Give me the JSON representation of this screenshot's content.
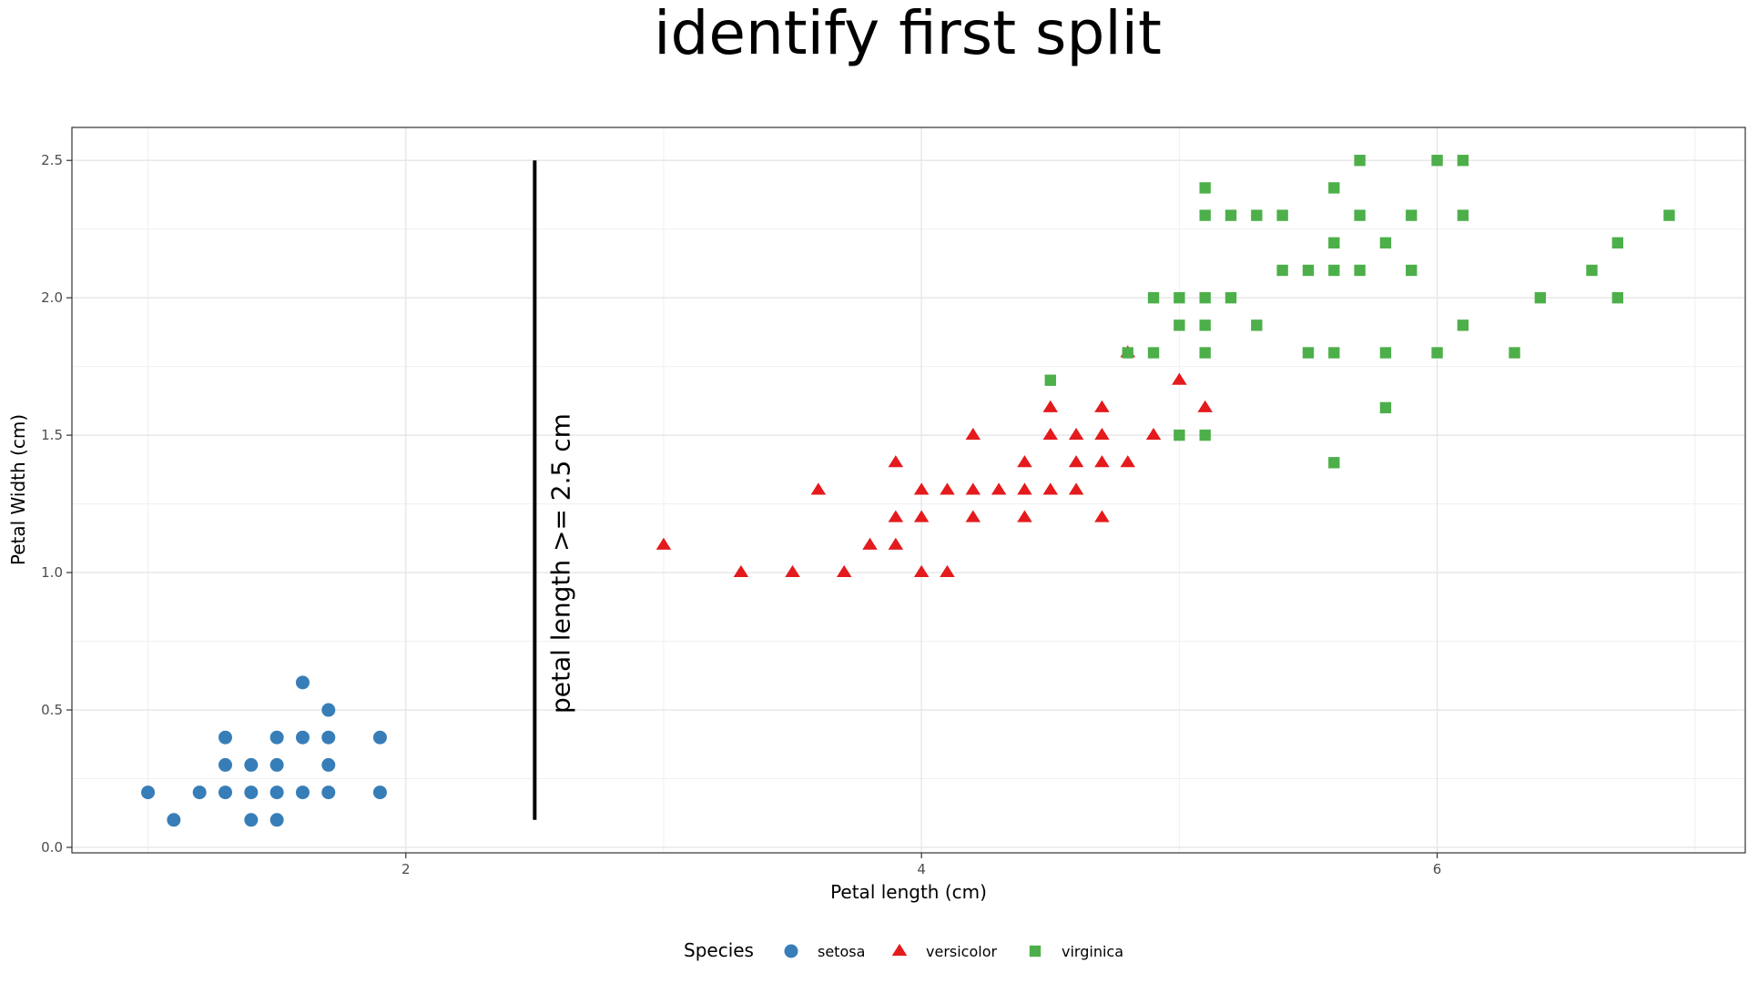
{
  "chart_data": {
    "type": "scatter",
    "title": "identify first split",
    "xlabel": "Petal length (cm)",
    "ylabel": "Petal Width (cm)",
    "xlim": [
      0.705,
      7.195
    ],
    "ylim": [
      -0.02,
      2.62
    ],
    "x_ticks": [
      2,
      4,
      6
    ],
    "x_tick_labels": [
      "2",
      "4",
      "6"
    ],
    "y_ticks": [
      0.0,
      0.5,
      1.0,
      1.5,
      2.0,
      2.5
    ],
    "y_tick_labels": [
      "0.0",
      "0.5",
      "1.0",
      "1.5",
      "2.0",
      "2.5"
    ],
    "grid": true,
    "legend": {
      "title": "Species",
      "position": "bottom"
    },
    "annotation": {
      "line": {
        "x": 2.5,
        "y_start": 0.1,
        "y_end": 2.5
      },
      "label": "petal length >= 2.5 cm",
      "label_x": 2.6,
      "label_y": 1.0
    },
    "series": [
      {
        "name": "setosa",
        "shape": "circle",
        "color": "#377EB8",
        "points": [
          [
            1.0,
            0.2
          ],
          [
            1.1,
            0.1
          ],
          [
            1.2,
            0.2
          ],
          [
            1.3,
            0.2
          ],
          [
            1.3,
            0.3
          ],
          [
            1.3,
            0.4
          ],
          [
            1.4,
            0.1
          ],
          [
            1.4,
            0.2
          ],
          [
            1.4,
            0.3
          ],
          [
            1.5,
            0.1
          ],
          [
            1.5,
            0.2
          ],
          [
            1.5,
            0.3
          ],
          [
            1.5,
            0.4
          ],
          [
            1.6,
            0.2
          ],
          [
            1.6,
            0.4
          ],
          [
            1.6,
            0.6
          ],
          [
            1.7,
            0.2
          ],
          [
            1.7,
            0.3
          ],
          [
            1.7,
            0.4
          ],
          [
            1.7,
            0.5
          ],
          [
            1.9,
            0.2
          ],
          [
            1.9,
            0.4
          ]
        ]
      },
      {
        "name": "versicolor",
        "shape": "triangle",
        "color": "#E41A1C",
        "points": [
          [
            3.0,
            1.1
          ],
          [
            3.3,
            1.0
          ],
          [
            3.5,
            1.0
          ],
          [
            3.6,
            1.3
          ],
          [
            3.7,
            1.0
          ],
          [
            3.8,
            1.1
          ],
          [
            3.9,
            1.1
          ],
          [
            3.9,
            1.2
          ],
          [
            3.9,
            1.4
          ],
          [
            4.0,
            1.0
          ],
          [
            4.0,
            1.2
          ],
          [
            4.0,
            1.3
          ],
          [
            4.1,
            1.0
          ],
          [
            4.1,
            1.3
          ],
          [
            4.2,
            1.2
          ],
          [
            4.2,
            1.3
          ],
          [
            4.2,
            1.5
          ],
          [
            4.3,
            1.3
          ],
          [
            4.4,
            1.2
          ],
          [
            4.4,
            1.3
          ],
          [
            4.4,
            1.4
          ],
          [
            4.5,
            1.3
          ],
          [
            4.5,
            1.5
          ],
          [
            4.5,
            1.6
          ],
          [
            4.6,
            1.3
          ],
          [
            4.6,
            1.4
          ],
          [
            4.6,
            1.5
          ],
          [
            4.7,
            1.2
          ],
          [
            4.7,
            1.4
          ],
          [
            4.7,
            1.5
          ],
          [
            4.7,
            1.6
          ],
          [
            4.8,
            1.4
          ],
          [
            4.8,
            1.8
          ],
          [
            4.9,
            1.5
          ],
          [
            5.0,
            1.7
          ],
          [
            5.1,
            1.6
          ]
        ]
      },
      {
        "name": "virginica",
        "shape": "square",
        "color": "#4DAF4A",
        "points": [
          [
            4.5,
            1.7
          ],
          [
            4.8,
            1.8
          ],
          [
            4.9,
            1.8
          ],
          [
            4.9,
            2.0
          ],
          [
            5.0,
            1.5
          ],
          [
            5.0,
            1.9
          ],
          [
            5.0,
            2.0
          ],
          [
            5.1,
            1.5
          ],
          [
            5.1,
            1.8
          ],
          [
            5.1,
            1.9
          ],
          [
            5.1,
            2.0
          ],
          [
            5.1,
            2.3
          ],
          [
            5.1,
            2.4
          ],
          [
            5.2,
            2.0
          ],
          [
            5.2,
            2.3
          ],
          [
            5.3,
            1.9
          ],
          [
            5.3,
            2.3
          ],
          [
            5.4,
            2.1
          ],
          [
            5.4,
            2.3
          ],
          [
            5.5,
            1.8
          ],
          [
            5.5,
            2.1
          ],
          [
            5.6,
            1.4
          ],
          [
            5.6,
            1.8
          ],
          [
            5.6,
            2.1
          ],
          [
            5.6,
            2.2
          ],
          [
            5.6,
            2.4
          ],
          [
            5.7,
            2.1
          ],
          [
            5.7,
            2.3
          ],
          [
            5.7,
            2.5
          ],
          [
            5.8,
            1.6
          ],
          [
            5.8,
            1.8
          ],
          [
            5.8,
            2.2
          ],
          [
            5.9,
            2.1
          ],
          [
            5.9,
            2.3
          ],
          [
            6.0,
            1.8
          ],
          [
            6.0,
            2.5
          ],
          [
            6.1,
            1.9
          ],
          [
            6.1,
            2.3
          ],
          [
            6.1,
            2.5
          ],
          [
            6.3,
            1.8
          ],
          [
            6.4,
            2.0
          ],
          [
            6.6,
            2.1
          ],
          [
            6.7,
            2.0
          ],
          [
            6.7,
            2.2
          ],
          [
            6.9,
            2.3
          ]
        ]
      }
    ]
  }
}
